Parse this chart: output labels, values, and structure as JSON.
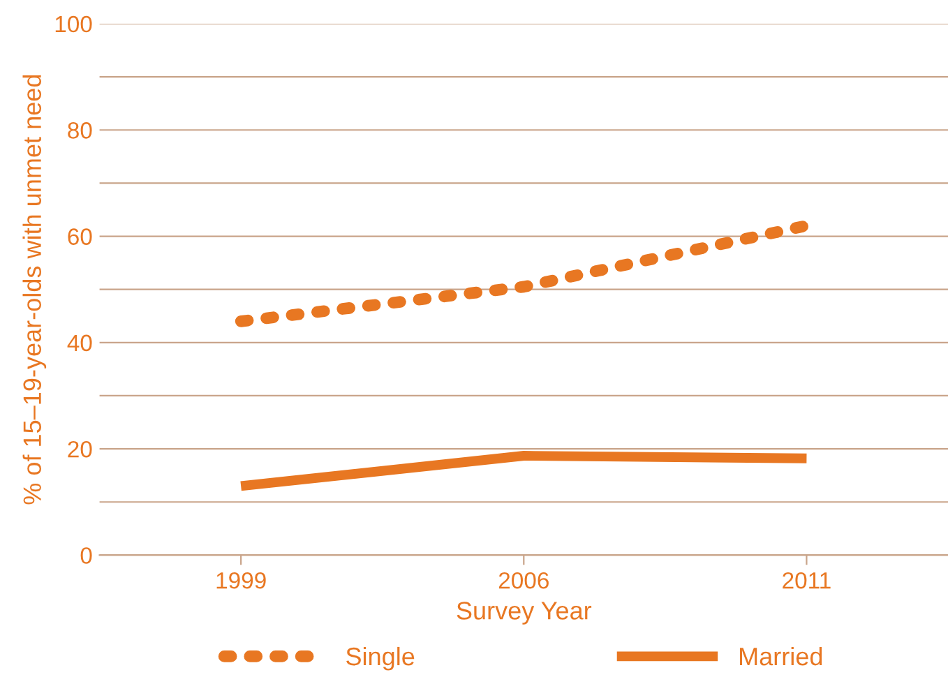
{
  "chart_data": {
    "type": "line",
    "xlabel": "Survey Year",
    "ylabel": "% of 15–19-year-olds with unmet need",
    "categories": [
      "1999",
      "2006",
      "2011"
    ],
    "series": [
      {
        "name": "Single",
        "color": "#e87722",
        "line_style": "dotted",
        "values": [
          44,
          50.5,
          62
        ]
      },
      {
        "name": "Married",
        "color": "#e87722",
        "line_style": "solid",
        "values": [
          13,
          18.7,
          18.2
        ]
      }
    ],
    "ylim": [
      0,
      100
    ],
    "yticks": [
      0,
      {
        "value": 10,
        "label": null
      },
      20,
      {
        "value": 30,
        "label": null
      },
      40,
      {
        "value": 50,
        "label": null
      },
      60,
      {
        "value": 70,
        "label": null
      },
      80,
      {
        "value": 90,
        "label": null
      },
      100
    ],
    "grid": "y",
    "legend": "bottom",
    "marker": "none"
  }
}
